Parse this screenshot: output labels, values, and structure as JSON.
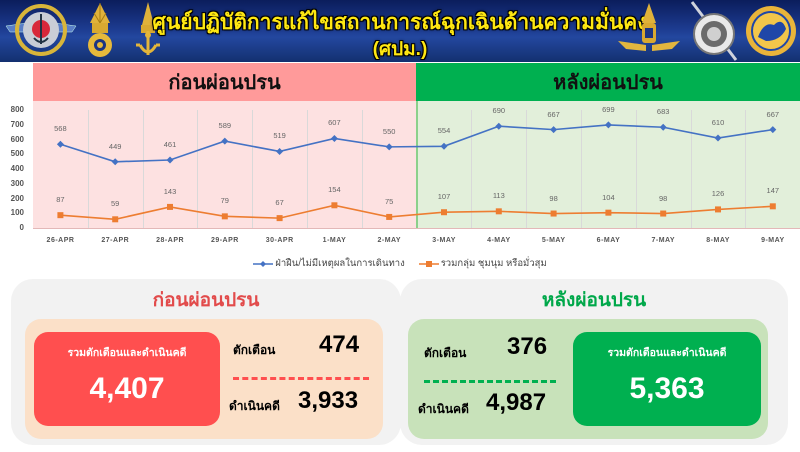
{
  "header": {
    "title_line1": "ศูนย์ปฏิบัติการแก้ไขสถานการณ์ฉุกเฉินด้านความมั่นคง",
    "title_line2": "(ศปม.)",
    "logos_left": [
      "armed-forces-emblem",
      "army-emblem",
      "navy-emblem"
    ],
    "logos_right": [
      "air-force-emblem",
      "police-emblem",
      "interior-ministry-emblem"
    ]
  },
  "chart_bands": {
    "before_label": "ก่อนผ่อนปรน",
    "after_label": "หลังผ่อนปรน"
  },
  "chart_data": {
    "type": "line",
    "title": "",
    "xlabel": "",
    "ylabel": "",
    "ylim": [
      0,
      800
    ],
    "yticks": [
      0,
      100,
      200,
      300,
      400,
      500,
      600,
      700,
      800
    ],
    "grid": "vertical",
    "legend_position": "bottom",
    "categories": [
      "26-APR",
      "27-APR",
      "28-APR",
      "29-APR",
      "30-APR",
      "1-MAY",
      "2-MAY",
      "3-MAY",
      "4-MAY",
      "5-MAY",
      "6-MAY",
      "7-MAY",
      "8-MAY",
      "9-MAY"
    ],
    "regions": [
      {
        "label": "ก่อนผ่อนปรน",
        "from": "26-APR",
        "to": "2-MAY",
        "color": "#fde1e1"
      },
      {
        "label": "หลังผ่อนปรน",
        "from": "3-MAY",
        "to": "9-MAY",
        "color": "#e2efda"
      }
    ],
    "series": [
      {
        "name": "ฝ่าฝืน/ไม่มีเหตุผลในการเดินทาง",
        "color": "#4472c4",
        "marker": "diamond",
        "values": [
          568,
          449,
          461,
          589,
          519,
          607,
          550,
          554,
          690,
          667,
          699,
          683,
          610,
          667
        ]
      },
      {
        "name": "รวมกลุ่ม ชุมนุม หรือมั่วสุม",
        "color": "#ed7d31",
        "marker": "square",
        "values": [
          87,
          59,
          143,
          79,
          67,
          154,
          75,
          107,
          113,
          98,
          104,
          98,
          126,
          147
        ]
      }
    ]
  },
  "summary": {
    "before": {
      "title": "ก่อนผ่อนปรน",
      "total_label": "รวมตักเตือนและดำเนินคดี",
      "total_value": "4,407",
      "warn_label": "ตักเตือน",
      "warn_value": "474",
      "prosecute_label": "ดำเนินคดี",
      "prosecute_value": "3,933",
      "accent": "#ff4f4f"
    },
    "after": {
      "title": "หลังผ่อนปรน",
      "total_label": "รวมตักเตือนและดำเนินคดี",
      "total_value": "5,363",
      "warn_label": "ตักเตือน",
      "warn_value": "376",
      "prosecute_label": "ดำเนินคดี",
      "prosecute_value": "4,987",
      "accent": "#00b050"
    }
  }
}
